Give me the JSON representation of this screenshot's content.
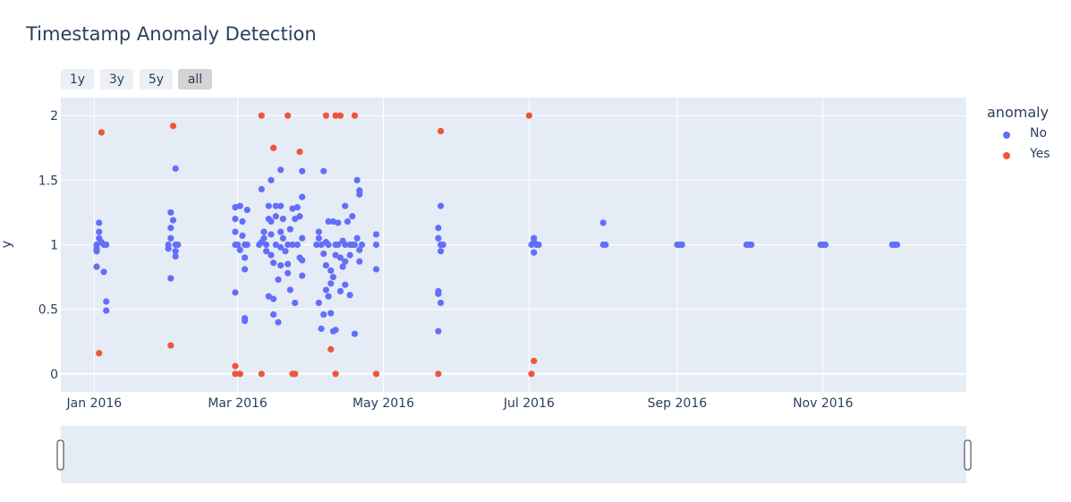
{
  "chart_data": {
    "type": "scatter",
    "title": "Timestamp Anomaly Detection",
    "ylabel": "y",
    "xlim": [
      "2015-12-18",
      "2016-12-31"
    ],
    "ylim": [
      -0.14,
      2.14
    ],
    "xticks": [
      {
        "date": "2016-01-01",
        "label": "Jan 2016"
      },
      {
        "date": "2016-03-01",
        "label": "Mar 2016"
      },
      {
        "date": "2016-05-01",
        "label": "May 2016"
      },
      {
        "date": "2016-07-01",
        "label": "Jul 2016"
      },
      {
        "date": "2016-09-01",
        "label": "Sep 2016"
      },
      {
        "date": "2016-11-01",
        "label": "Nov 2016"
      }
    ],
    "yticks": [
      0,
      0.5,
      1,
      1.5,
      2
    ],
    "yticklabels": [
      "0",
      "0.5",
      "1",
      "1.5",
      "2"
    ],
    "legend_title": "anomaly",
    "legend_position": "right",
    "grid": true,
    "range_buttons": [
      "1y",
      "3y",
      "5y",
      "all"
    ],
    "active_range": "all",
    "series": [
      {
        "name": "No",
        "color": "#636efa",
        "points": [
          [
            "2016-01-02",
            1.0
          ],
          [
            "2016-01-03",
            1.17
          ],
          [
            "2016-01-03",
            1.1
          ],
          [
            "2016-01-03",
            1.05
          ],
          [
            "2016-01-02",
            0.97
          ],
          [
            "2016-01-02",
            0.95
          ],
          [
            "2016-01-02",
            0.83
          ],
          [
            "2016-01-04",
            1.02
          ],
          [
            "2016-01-05",
            1.0
          ],
          [
            "2016-01-06",
            1.0
          ],
          [
            "2016-01-05",
            0.79
          ],
          [
            "2016-01-06",
            0.56
          ],
          [
            "2016-01-06",
            0.49
          ],
          [
            "2016-02-01",
            1.0
          ],
          [
            "2016-02-01",
            0.97
          ],
          [
            "2016-02-02",
            1.13
          ],
          [
            "2016-02-02",
            1.05
          ],
          [
            "2016-02-02",
            1.25
          ],
          [
            "2016-02-02",
            0.74
          ],
          [
            "2016-02-03",
            1.19
          ],
          [
            "2016-02-04",
            1.59
          ],
          [
            "2016-02-04",
            1.0
          ],
          [
            "2016-02-04",
            0.95
          ],
          [
            "2016-02-04",
            0.91
          ],
          [
            "2016-02-05",
            1.0
          ],
          [
            "2016-02-29",
            1.0
          ],
          [
            "2016-02-29",
            1.29
          ],
          [
            "2016-02-29",
            1.2
          ],
          [
            "2016-02-29",
            1.1
          ],
          [
            "2016-02-29",
            0.63
          ],
          [
            "2016-03-01",
            1.0
          ],
          [
            "2016-03-02",
            1.3
          ],
          [
            "2016-03-02",
            0.96
          ],
          [
            "2016-03-03",
            1.18
          ],
          [
            "2016-03-03",
            1.07
          ],
          [
            "2016-03-04",
            1.0
          ],
          [
            "2016-03-04",
            0.9
          ],
          [
            "2016-03-05",
            1.27
          ],
          [
            "2016-03-04",
            0.81
          ],
          [
            "2016-03-04",
            0.43
          ],
          [
            "2016-03-04",
            0.41
          ],
          [
            "2016-03-05",
            1.0
          ],
          [
            "2016-03-10",
            1.0
          ],
          [
            "2016-03-11",
            1.43
          ],
          [
            "2016-03-11",
            1.02
          ],
          [
            "2016-03-12",
            1.05
          ],
          [
            "2016-03-12",
            1.1
          ],
          [
            "2016-03-13",
            1.0
          ],
          [
            "2016-03-13",
            0.95
          ],
          [
            "2016-03-14",
            1.3
          ],
          [
            "2016-03-14",
            1.2
          ],
          [
            "2016-03-14",
            0.6
          ],
          [
            "2016-03-15",
            1.5
          ],
          [
            "2016-03-15",
            1.18
          ],
          [
            "2016-03-15",
            1.08
          ],
          [
            "2016-03-15",
            0.92
          ],
          [
            "2016-03-16",
            0.86
          ],
          [
            "2016-03-16",
            0.46
          ],
          [
            "2016-03-16",
            0.58
          ],
          [
            "2016-03-17",
            1.3
          ],
          [
            "2016-03-17",
            1.0
          ],
          [
            "2016-03-17",
            1.22
          ],
          [
            "2016-03-18",
            0.73
          ],
          [
            "2016-03-18",
            0.4
          ],
          [
            "2016-03-19",
            1.58
          ],
          [
            "2016-03-19",
            1.3
          ],
          [
            "2016-03-19",
            1.1
          ],
          [
            "2016-03-19",
            0.98
          ],
          [
            "2016-03-19",
            0.84
          ],
          [
            "2016-03-20",
            1.2
          ],
          [
            "2016-03-20",
            1.05
          ],
          [
            "2016-03-21",
            0.95
          ],
          [
            "2016-03-22",
            1.0
          ],
          [
            "2016-03-22",
            0.85
          ],
          [
            "2016-03-22",
            0.78
          ],
          [
            "2016-03-23",
            1.12
          ],
          [
            "2016-03-23",
            0.65
          ],
          [
            "2016-03-24",
            1.28
          ],
          [
            "2016-03-24",
            1.0
          ],
          [
            "2016-03-25",
            1.2
          ],
          [
            "2016-03-25",
            0.55
          ],
          [
            "2016-03-26",
            1.29
          ],
          [
            "2016-03-26",
            1.0
          ],
          [
            "2016-03-27",
            1.22
          ],
          [
            "2016-03-27",
            0.9
          ],
          [
            "2016-03-28",
            1.57
          ],
          [
            "2016-03-28",
            1.37
          ],
          [
            "2016-03-28",
            1.05
          ],
          [
            "2016-03-28",
            0.88
          ],
          [
            "2016-03-28",
            0.76
          ],
          [
            "2016-04-03",
            1.0
          ],
          [
            "2016-04-04",
            1.1
          ],
          [
            "2016-04-04",
            1.05
          ],
          [
            "2016-04-04",
            0.55
          ],
          [
            "2016-04-05",
            1.0
          ],
          [
            "2016-04-05",
            0.35
          ],
          [
            "2016-04-06",
            1.57
          ],
          [
            "2016-04-06",
            0.93
          ],
          [
            "2016-04-06",
            0.46
          ],
          [
            "2016-04-07",
            1.02
          ],
          [
            "2016-04-07",
            0.65
          ],
          [
            "2016-04-07",
            0.84
          ],
          [
            "2016-04-08",
            1.18
          ],
          [
            "2016-04-08",
            1.0
          ],
          [
            "2016-04-08",
            0.6
          ],
          [
            "2016-04-09",
            0.8
          ],
          [
            "2016-04-09",
            0.47
          ],
          [
            "2016-04-09",
            0.7
          ],
          [
            "2016-04-10",
            1.18
          ],
          [
            "2016-04-10",
            0.75
          ],
          [
            "2016-04-10",
            0.33
          ],
          [
            "2016-04-11",
            1.0
          ],
          [
            "2016-04-11",
            0.92
          ],
          [
            "2016-04-11",
            0.34
          ],
          [
            "2016-04-12",
            1.17
          ],
          [
            "2016-04-12",
            1.0
          ],
          [
            "2016-04-13",
            0.9
          ],
          [
            "2016-04-13",
            0.64
          ],
          [
            "2016-04-14",
            1.03
          ],
          [
            "2016-04-14",
            0.83
          ],
          [
            "2016-04-15",
            1.3
          ],
          [
            "2016-04-15",
            1.0
          ],
          [
            "2016-04-15",
            0.87
          ],
          [
            "2016-04-15",
            0.69
          ],
          [
            "2016-04-16",
            1.18
          ],
          [
            "2016-04-17",
            1.0
          ],
          [
            "2016-04-17",
            0.92
          ],
          [
            "2016-04-17",
            0.61
          ],
          [
            "2016-04-18",
            1.22
          ],
          [
            "2016-04-18",
            1.0
          ],
          [
            "2016-04-19",
            1.0
          ],
          [
            "2016-04-20",
            1.5
          ],
          [
            "2016-04-20",
            1.05
          ],
          [
            "2016-04-21",
            1.42
          ],
          [
            "2016-04-21",
            1.39
          ],
          [
            "2016-04-21",
            0.96
          ],
          [
            "2016-04-21",
            0.87
          ],
          [
            "2016-04-22",
            1.0
          ],
          [
            "2016-04-19",
            0.31
          ],
          [
            "2016-04-28",
            1.08
          ],
          [
            "2016-04-28",
            1.0
          ],
          [
            "2016-04-28",
            0.81
          ],
          [
            "2016-05-24",
            1.13
          ],
          [
            "2016-05-24",
            1.05
          ],
          [
            "2016-05-24",
            0.64
          ],
          [
            "2016-05-24",
            0.62
          ],
          [
            "2016-05-24",
            0.33
          ],
          [
            "2016-05-25",
            1.0
          ],
          [
            "2016-05-25",
            0.95
          ],
          [
            "2016-05-25",
            0.55
          ],
          [
            "2016-05-25",
            1.3
          ],
          [
            "2016-05-26",
            1.0
          ],
          [
            "2016-07-02",
            1.0
          ],
          [
            "2016-07-03",
            1.05
          ],
          [
            "2016-07-03",
            1.02
          ],
          [
            "2016-07-03",
            0.94
          ],
          [
            "2016-07-04",
            1.0
          ],
          [
            "2016-07-05",
            1.0
          ],
          [
            "2016-08-01",
            1.17
          ],
          [
            "2016-08-01",
            1.0
          ],
          [
            "2016-08-02",
            1.0
          ],
          [
            "2016-09-01",
            1.0
          ],
          [
            "2016-09-02",
            1.0
          ],
          [
            "2016-09-03",
            1.0
          ],
          [
            "2016-09-30",
            1.0
          ],
          [
            "2016-10-01",
            1.0
          ],
          [
            "2016-10-02",
            1.0
          ],
          [
            "2016-10-31",
            1.0
          ],
          [
            "2016-11-01",
            1.0
          ],
          [
            "2016-11-02",
            1.0
          ],
          [
            "2016-11-30",
            1.0
          ],
          [
            "2016-12-01",
            1.0
          ],
          [
            "2016-12-02",
            1.0
          ]
        ]
      },
      {
        "name": "Yes",
        "color": "#ef553b",
        "points": [
          [
            "2016-01-04",
            1.87
          ],
          [
            "2016-01-03",
            0.16
          ],
          [
            "2016-02-03",
            1.92
          ],
          [
            "2016-02-02",
            0.22
          ],
          [
            "2016-02-29",
            0.06
          ],
          [
            "2016-02-29",
            0.0
          ],
          [
            "2016-03-02",
            0.0
          ],
          [
            "2016-03-11",
            2.0
          ],
          [
            "2016-03-11",
            0.0
          ],
          [
            "2016-03-16",
            1.75
          ],
          [
            "2016-03-22",
            2.0
          ],
          [
            "2016-03-24",
            0.0
          ],
          [
            "2016-03-25",
            0.0
          ],
          [
            "2016-03-27",
            1.72
          ],
          [
            "2016-04-07",
            2.0
          ],
          [
            "2016-04-09",
            0.19
          ],
          [
            "2016-04-11",
            0.0
          ],
          [
            "2016-04-11",
            2.0
          ],
          [
            "2016-04-13",
            2.0
          ],
          [
            "2016-04-19",
            2.0
          ],
          [
            "2016-04-28",
            0.0
          ],
          [
            "2016-05-25",
            1.88
          ],
          [
            "2016-05-24",
            0.0
          ],
          [
            "2016-07-01",
            2.0
          ],
          [
            "2016-07-03",
            0.1
          ],
          [
            "2016-07-02",
            0.0
          ]
        ]
      }
    ]
  }
}
